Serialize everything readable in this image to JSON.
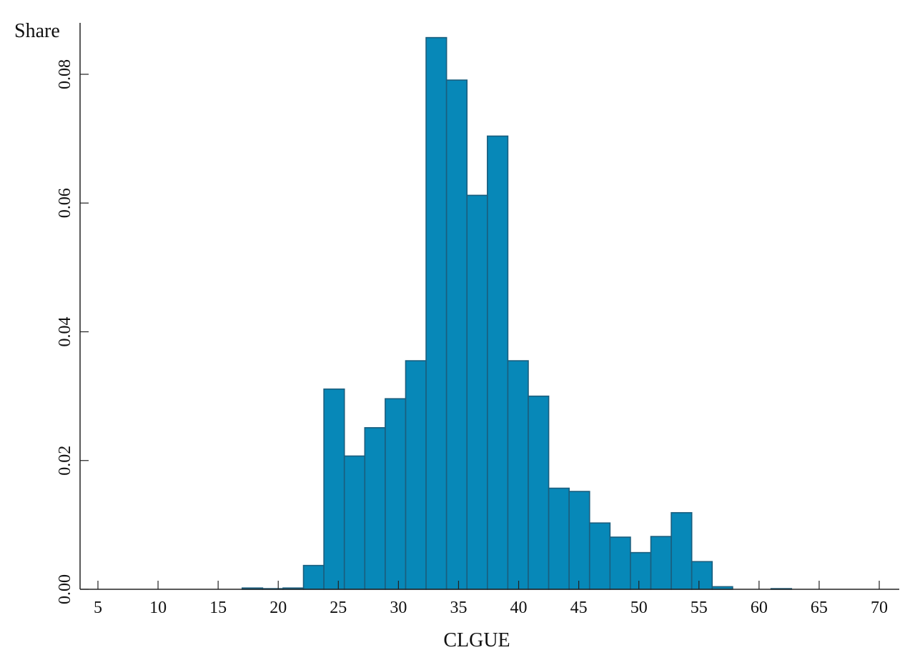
{
  "chart_data": {
    "type": "bar",
    "xlabel": "CLGUE",
    "ylabel": "Share",
    "xlim": [
      5,
      70
    ],
    "ylim": [
      0,
      0.086
    ],
    "x_ticks": [
      5,
      10,
      15,
      20,
      25,
      30,
      35,
      40,
      45,
      50,
      55,
      60,
      65,
      70
    ],
    "x_tick_labels": [
      "5",
      "10",
      "15",
      "20",
      "25",
      "30",
      "35",
      "40",
      "45",
      "50",
      "55",
      "60",
      "65",
      "70"
    ],
    "y_ticks": [
      0,
      0.02,
      0.04,
      0.06,
      0.08
    ],
    "y_tick_labels": [
      "0.00",
      "0.02",
      "0.04",
      "0.06",
      "0.08"
    ],
    "grid": false,
    "bar_color": "#0788B8",
    "bar_edge_color": "#1A5E7E",
    "bins": [
      {
        "x0": 17.0,
        "x1": 18.7,
        "value": 0.0002
      },
      {
        "x0": 18.7,
        "x1": 20.4,
        "value": 0.0001
      },
      {
        "x0": 20.4,
        "x1": 22.1,
        "value": 0.0002
      },
      {
        "x0": 22.1,
        "x1": 23.8,
        "value": 0.0037
      },
      {
        "x0": 23.8,
        "x1": 25.5,
        "value": 0.0311
      },
      {
        "x0": 25.5,
        "x1": 27.2,
        "value": 0.0207
      },
      {
        "x0": 27.2,
        "x1": 28.9,
        "value": 0.0251
      },
      {
        "x0": 28.9,
        "x1": 30.6,
        "value": 0.0296
      },
      {
        "x0": 30.6,
        "x1": 32.3,
        "value": 0.0355
      },
      {
        "x0": 32.3,
        "x1": 34.0,
        "value": 0.0857
      },
      {
        "x0": 34.0,
        "x1": 35.7,
        "value": 0.0791
      },
      {
        "x0": 35.7,
        "x1": 37.4,
        "value": 0.0612
      },
      {
        "x0": 37.4,
        "x1": 39.1,
        "value": 0.0704
      },
      {
        "x0": 39.1,
        "x1": 40.8,
        "value": 0.0355
      },
      {
        "x0": 40.8,
        "x1": 42.5,
        "value": 0.03
      },
      {
        "x0": 42.5,
        "x1": 44.2,
        "value": 0.0157
      },
      {
        "x0": 44.2,
        "x1": 45.9,
        "value": 0.0152
      },
      {
        "x0": 45.9,
        "x1": 47.6,
        "value": 0.0103
      },
      {
        "x0": 47.6,
        "x1": 49.3,
        "value": 0.0081
      },
      {
        "x0": 49.3,
        "x1": 51.0,
        "value": 0.0057
      },
      {
        "x0": 51.0,
        "x1": 52.7,
        "value": 0.0082
      },
      {
        "x0": 52.7,
        "x1": 54.4,
        "value": 0.0119
      },
      {
        "x0": 54.4,
        "x1": 56.1,
        "value": 0.0043
      },
      {
        "x0": 56.1,
        "x1": 57.8,
        "value": 0.0004
      },
      {
        "x0": 61.0,
        "x1": 62.7,
        "value": 0.0001
      }
    ]
  }
}
